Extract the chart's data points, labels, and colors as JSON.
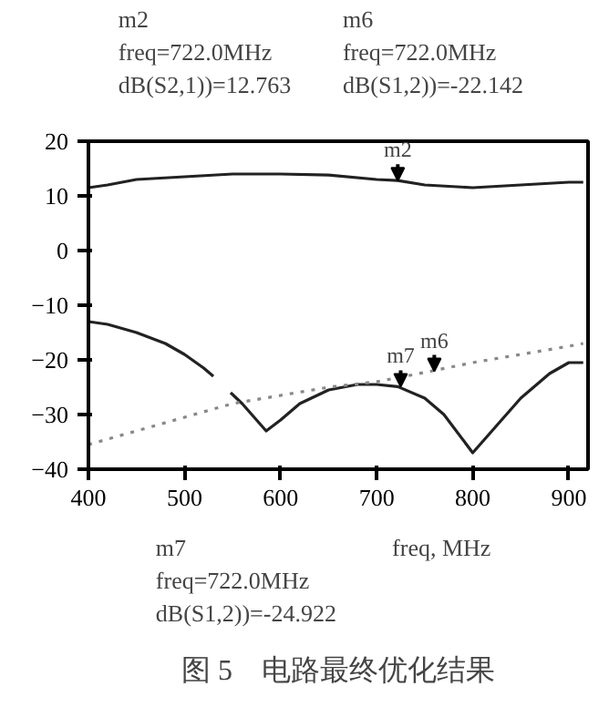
{
  "chart_data": {
    "type": "line",
    "title": "图 5　电路最终优化结果",
    "xlabel": "freq, MHz",
    "xlim": [
      400,
      920
    ],
    "ylim": [
      -40,
      20
    ],
    "xticks": [
      400,
      500,
      600,
      700,
      800,
      900
    ],
    "yticks": [
      -40,
      -30,
      -20,
      -10,
      0,
      10,
      20
    ],
    "series": [
      {
        "color": "#222222",
        "line_style": "solid",
        "x": [
          400,
          420,
          450,
          500,
          550,
          600,
          650,
          700,
          722,
          750,
          800,
          850,
          900,
          915
        ],
        "values": [
          11.5,
          12,
          13,
          13.5,
          14,
          14,
          13.8,
          13,
          12.8,
          12,
          11.5,
          12,
          12.5,
          12.5
        ]
      },
      {
        "color": "#222222",
        "line_style": "solid",
        "x": [
          400,
          420,
          450,
          480,
          500,
          520,
          530,
          540,
          548,
          560,
          585,
          600,
          620,
          650,
          680,
          700,
          722,
          750,
          770,
          800,
          820,
          850,
          880,
          900,
          915
        ],
        "values": [
          -13,
          -13.5,
          -15,
          -17,
          -19,
          -21.5,
          -23,
          null,
          -26,
          -28,
          -33,
          -31,
          -28,
          -25.5,
          -24.5,
          -24.5,
          -24.9,
          -27,
          -30,
          -37,
          -33,
          -27,
          -22.5,
          -20.5,
          -20.5
        ]
      },
      {
        "color": "#888888",
        "line_style": "dotted",
        "x": [
          400,
          450,
          500,
          550,
          600,
          650,
          700,
          750,
          800,
          850,
          900,
          915
        ],
        "values": [
          -35.5,
          -33,
          -30.5,
          -28,
          -26.5,
          -25,
          -24,
          -22.3,
          -20.5,
          -19,
          -17.5,
          -17
        ]
      }
    ],
    "annotations": [
      "m2\nfreq=722.0MHz\ndB(S2,1))=12.763",
      "m6\nfreq=722.0MHz\ndB(S1,2))=-22.142",
      "m7\nfreq=722.0MHz\ndB(S1,2))=-24.922",
      {
        "text": "m2",
        "x": 722,
        "y": 12.8
      },
      {
        "text": "m6",
        "x": 760,
        "y": -22.1
      },
      {
        "text": "m7",
        "x": 725,
        "y": -24.9
      }
    ]
  }
}
